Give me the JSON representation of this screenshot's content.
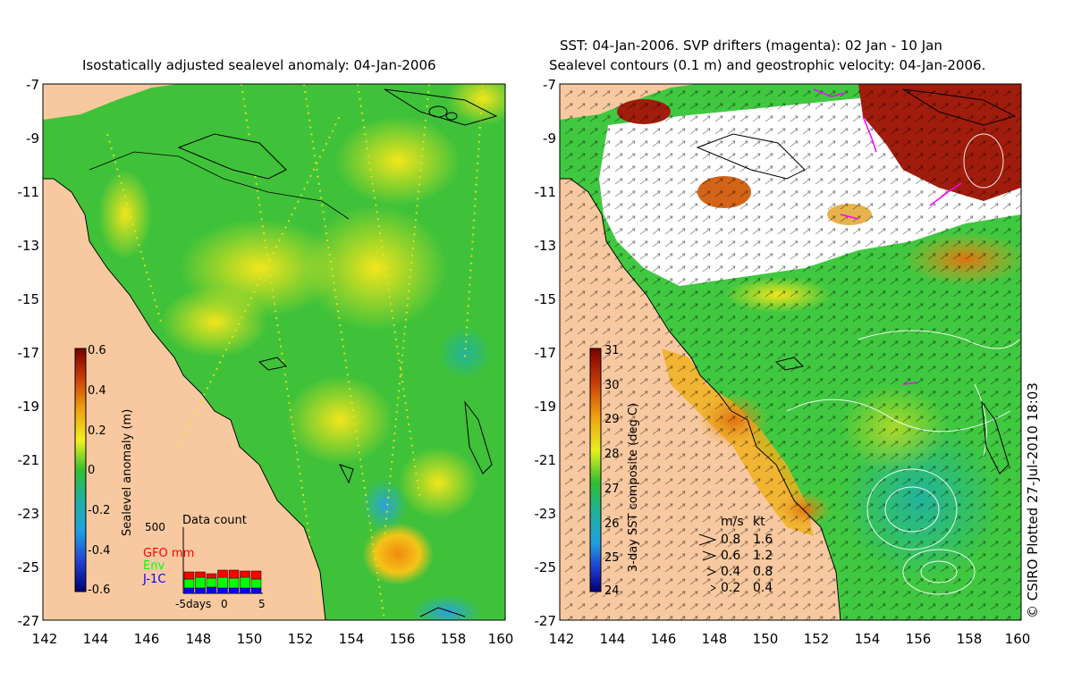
{
  "left_panel": {
    "title": "Isostatically adjusted sealevel anomaly: 04-Jan-2006",
    "y_ticks": [
      "-7",
      "-9",
      "-11",
      "-13",
      "-15",
      "-17",
      "-19",
      "-21",
      "-23",
      "-25",
      "-27"
    ],
    "x_ticks": [
      "142",
      "144",
      "146",
      "148",
      "150",
      "152",
      "154",
      "156",
      "158",
      "160"
    ],
    "colorbar": {
      "label": "Sealevel anomaly (m)",
      "ticks": [
        "0.6",
        "0.4",
        "0.2",
        "0",
        "-0.2",
        "-0.4",
        "-0.6"
      ]
    },
    "data_count": {
      "title": "Data count",
      "max_label": "500",
      "legend": [
        {
          "label": "GFO mm",
          "color": "#ff0000"
        },
        {
          "label": "Env",
          "color": "#00ff00"
        },
        {
          "label": "J-1C",
          "color": "#0000ff"
        }
      ],
      "axis": {
        "left": "-5days",
        "mid": "0",
        "right": "5"
      }
    }
  },
  "right_panel": {
    "title_line1": "SST: 04-Jan-2006. SVP drifters (magenta): 02 Jan - 10 Jan",
    "title_line2": "Sealevel contours (0.1 m) and geostrophic velocity: 04-Jan-2006.",
    "y_ticks": [
      "-7",
      "-9",
      "-11",
      "-13",
      "-15",
      "-17",
      "-19",
      "-21",
      "-23",
      "-25",
      "-27"
    ],
    "x_ticks": [
      "142",
      "144",
      "146",
      "148",
      "150",
      "152",
      "154",
      "156",
      "158",
      "160"
    ],
    "colorbar": {
      "label": "3-day SST composite (deg C)",
      "ticks": [
        "31",
        "30",
        "29",
        "28",
        "27",
        "26",
        "25",
        "24"
      ]
    },
    "velocity_legend": {
      "header_ms": "m/s",
      "header_kt": "kt",
      "rows": [
        {
          "ms": "0.8",
          "kt": "1.6"
        },
        {
          "ms": "0.6",
          "kt": "1.2"
        },
        {
          "ms": "0.4",
          "kt": "0.8"
        },
        {
          "ms": "0.2",
          "kt": "0.4"
        }
      ]
    }
  },
  "stamp": "© CSIRO Plotted 27-Jul-2010 18:03",
  "colors": {
    "land": "#f8c9a0",
    "ocean_left": "#3fc23a",
    "ocean_right": "#40c840",
    "cloud": "#ffffff",
    "warm": "#a01c0c"
  }
}
